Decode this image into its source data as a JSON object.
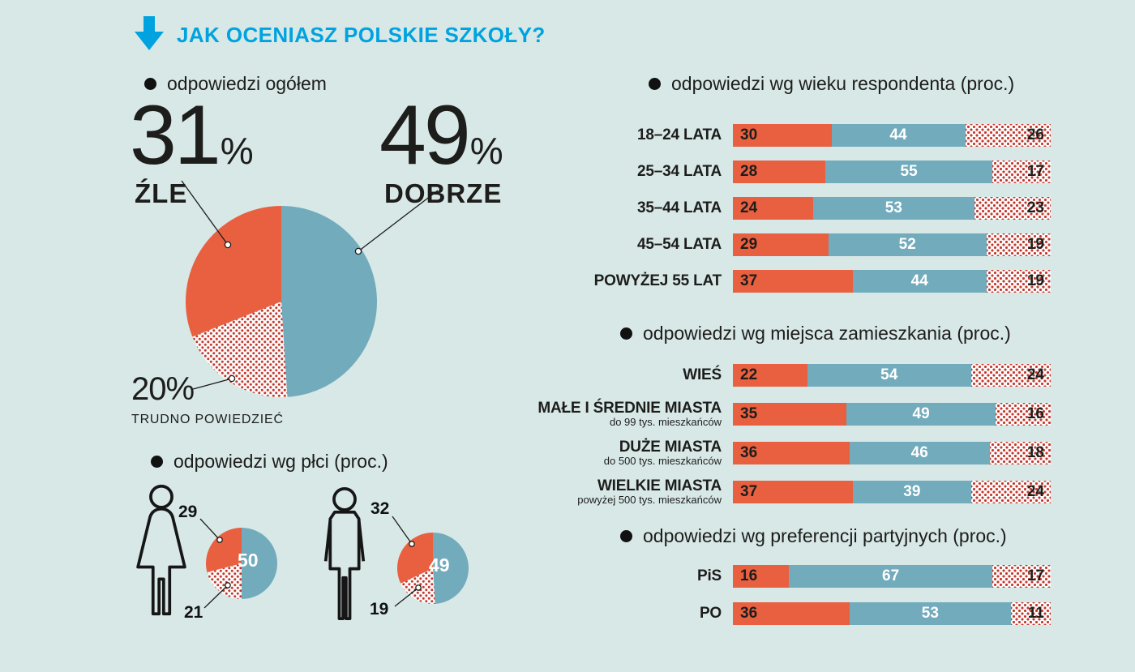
{
  "title": "JAK OCENIASZ POLSKIE SZKOŁY?",
  "misc": {
    "percent": "%"
  },
  "colors": {
    "background": "#d7e8e7",
    "orange": "#e8603f",
    "blue": "#72abbc",
    "dot_red": "#c5372c",
    "title_blue": "#00a3df",
    "text": "#1d1d1b",
    "white": "#ffffff"
  },
  "chart_data": [
    {
      "id": "overall",
      "type": "pie",
      "title": "odpowiedzi ogółem",
      "labels": [
        "DOBRZE",
        "TRUDNO POWIEDZIEĆ",
        "ŹLE"
      ],
      "values": [
        49,
        20,
        31
      ],
      "fills": [
        "blue",
        "dots",
        "orange"
      ]
    },
    {
      "id": "by-age",
      "type": "bar",
      "stacked": true,
      "title": "odpowiedzi wg wieku respondenta (proc.)",
      "categories": [
        "18–24 LATA",
        "25–34 LATA",
        "35–44 LATA",
        "45–54 LATA",
        "POWYŻEJ 55 LAT"
      ],
      "series": [
        {
          "name": "ŹLE",
          "fill": "orange",
          "values": [
            30,
            28,
            24,
            29,
            37
          ]
        },
        {
          "name": "DOBRZE",
          "fill": "blue",
          "values": [
            44,
            55,
            53,
            52,
            44
          ]
        },
        {
          "name": "TRUDNO POWIEDZIEĆ",
          "fill": "dots",
          "values": [
            26,
            17,
            23,
            19,
            19
          ]
        }
      ],
      "xlim": [
        0,
        100
      ]
    },
    {
      "id": "by-residence",
      "type": "bar",
      "stacked": true,
      "title": "odpowiedzi wg miejsca zamieszkania (proc.)",
      "categories": [
        "WIEŚ",
        "MAŁE I ŚREDNIE MIASTA",
        "DUŻE MIASTA",
        "WIELKIE MIASTA"
      ],
      "subcategories": [
        "",
        "do 99 tys. mieszkańców",
        "do 500 tys. mieszkańców",
        "powyżej 500 tys. mieszkańców"
      ],
      "series": [
        {
          "name": "ŹLE",
          "fill": "orange",
          "values": [
            22,
            35,
            36,
            37
          ]
        },
        {
          "name": "DOBRZE",
          "fill": "blue",
          "values": [
            54,
            49,
            46,
            39
          ]
        },
        {
          "name": "TRUDNO POWIEDZIEĆ",
          "fill": "dots",
          "values": [
            24,
            16,
            18,
            24
          ]
        }
      ],
      "xlim": [
        0,
        100
      ]
    },
    {
      "id": "by-party",
      "type": "bar",
      "stacked": true,
      "title": "odpowiedzi wg preferencji partyjnych (proc.)",
      "categories": [
        "PiS",
        "PO"
      ],
      "series": [
        {
          "name": "ŹLE",
          "fill": "orange",
          "values": [
            16,
            36
          ]
        },
        {
          "name": "DOBRZE",
          "fill": "blue",
          "values": [
            67,
            53
          ]
        },
        {
          "name": "TRUDNO POWIEDZIEĆ",
          "fill": "dots",
          "values": [
            17,
            11
          ]
        }
      ],
      "xlim": [
        0,
        100
      ]
    },
    {
      "id": "by-gender",
      "type": "pie",
      "title": "odpowiedzi wg płci (proc.)",
      "groups": [
        {
          "name": "female",
          "labels": [
            "DOBRZE",
            "TRUDNO POWIEDZIEĆ",
            "ŹLE"
          ],
          "values": [
            50,
            21,
            29
          ],
          "fills": [
            "blue",
            "dots",
            "orange"
          ]
        },
        {
          "name": "male",
          "labels": [
            "DOBRZE",
            "TRUDNO POWIEDZIEĆ",
            "ŹLE"
          ],
          "values": [
            49,
            19,
            32
          ],
          "fills": [
            "blue",
            "dots",
            "orange"
          ]
        }
      ]
    }
  ]
}
